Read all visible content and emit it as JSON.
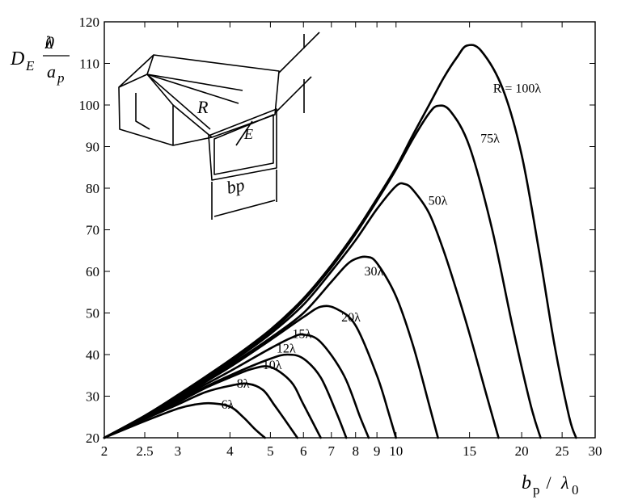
{
  "chart_data": {
    "type": "line",
    "xscale": "log",
    "xlim": [
      2,
      30
    ],
    "ylim": [
      20,
      120
    ],
    "grid": false,
    "xticks": [
      2,
      2.5,
      3,
      4,
      5,
      6,
      7,
      8,
      9,
      10,
      15,
      20,
      25,
      30
    ],
    "xtick_labels": [
      "2",
      "2.5",
      "3",
      "4",
      "5",
      "6",
      "7",
      "8",
      "9",
      "10",
      "15",
      "20",
      "25",
      "30"
    ],
    "yticks": [
      20,
      30,
      40,
      50,
      60,
      70,
      80,
      90,
      100,
      110,
      120
    ],
    "ytick_labels": [
      "20",
      "30",
      "40",
      "50",
      "60",
      "70",
      "80",
      "90",
      "100",
      "110",
      "120"
    ],
    "ylabel": {
      "main": "D",
      "sub": "E",
      "num": "λ",
      "num_sub": "0",
      "den": "a",
      "den_sub": "p"
    },
    "xlabel": {
      "var": "b",
      "sub": "p",
      "sep": " / ",
      "den": "λ",
      "den_sub": "0"
    },
    "series": [
      {
        "name": "6λ",
        "label": "6λ",
        "x": [
          2,
          2.5,
          3,
          3.3,
          3.6,
          4.0,
          4.3,
          4.6,
          4.85
        ],
        "y": [
          20,
          24.0,
          27.0,
          28.0,
          28.3,
          27.5,
          25.0,
          22.0,
          20
        ]
      },
      {
        "name": "8λ",
        "label": "8λ",
        "x": [
          2,
          2.5,
          3,
          3.5,
          4.0,
          4.4,
          4.8,
          5.1,
          5.4,
          5.8
        ],
        "y": [
          20,
          24.5,
          28.0,
          31.0,
          32.5,
          33.0,
          31.5,
          28.0,
          24.5,
          20
        ]
      },
      {
        "name": "10λ",
        "label": "10λ",
        "x": [
          2,
          2.5,
          3,
          3.5,
          4.0,
          4.5,
          5.0,
          5.6,
          6.0,
          6.6
        ],
        "y": [
          20,
          24.6,
          28.5,
          32.0,
          34.5,
          36.5,
          37.0,
          33.5,
          28.0,
          20
        ]
      },
      {
        "name": "12λ",
        "label": "12λ",
        "x": [
          2,
          2.5,
          3,
          4.0,
          5.0,
          5.5,
          6.0,
          6.6,
          7.2,
          7.6
        ],
        "y": [
          20,
          24.8,
          29.0,
          35.0,
          39.0,
          40.0,
          39.0,
          34.5,
          26.0,
          20
        ]
      },
      {
        "name": "15λ",
        "label": "15λ",
        "x": [
          2,
          2.5,
          3,
          4.0,
          5.0,
          5.6,
          6.0,
          6.6,
          7.5,
          8.2,
          8.6
        ],
        "y": [
          20,
          24.9,
          29.3,
          36.0,
          41.5,
          44.0,
          44.8,
          43.0,
          35.0,
          25.0,
          20
        ]
      },
      {
        "name": "20λ",
        "label": "20λ",
        "x": [
          2,
          2.5,
          3,
          4.0,
          5.0,
          6.0,
          6.6,
          7.2,
          8.0,
          9.0,
          9.6,
          10.0
        ],
        "y": [
          20,
          25.0,
          29.5,
          37.0,
          43.5,
          49.0,
          51.5,
          51.0,
          47.0,
          35.0,
          26.0,
          20
        ]
      },
      {
        "name": "30λ",
        "label": "30λ",
        "x": [
          2,
          2.5,
          3,
          4.0,
          5.0,
          6.0,
          7.0,
          7.6,
          8.0,
          8.5,
          9.0,
          10.0,
          11.0,
          12.0,
          12.6
        ],
        "y": [
          20,
          25.1,
          29.8,
          37.5,
          44.0,
          50.0,
          57.5,
          61.5,
          63.0,
          63.5,
          62.0,
          54.0,
          42.0,
          28.0,
          20
        ]
      },
      {
        "name": "50λ",
        "label": "50λ",
        "x": [
          2,
          2.5,
          3,
          4.0,
          5.0,
          6.0,
          7.0,
          8.0,
          9.0,
          10.0,
          10.5,
          11.0,
          12.0,
          13.0,
          14.0,
          15.0,
          16.5,
          17.6
        ],
        "y": [
          20,
          25.2,
          30.0,
          38.0,
          45.0,
          52.0,
          60.0,
          67.5,
          75.0,
          80.5,
          81.0,
          79.5,
          74.0,
          65.0,
          55.0,
          45.0,
          30.0,
          20
        ]
      },
      {
        "name": "75λ",
        "label": "75λ",
        "x": [
          2,
          2.5,
          3,
          4.0,
          5.0,
          6.0,
          7.0,
          8.0,
          9.0,
          10.0,
          11.0,
          12.0,
          12.6,
          13.5,
          15.0,
          17.0,
          19.0,
          21.0,
          22.2
        ],
        "y": [
          20,
          25.3,
          30.2,
          38.5,
          45.5,
          53.0,
          61.0,
          69.0,
          77.0,
          84.5,
          92.0,
          98.0,
          99.8,
          98.5,
          90.0,
          70.0,
          47.0,
          28.0,
          20
        ]
      },
      {
        "name": "R = 100λ",
        "label": "R = 100λ",
        "x": [
          2,
          2.5,
          3,
          4.0,
          5.0,
          6.0,
          7.0,
          8.0,
          9.0,
          10.0,
          11.0,
          12.0,
          13.0,
          14.0,
          14.8,
          16.0,
          18.0,
          20.0,
          22.0,
          24.0,
          26.0,
          27.0
        ],
        "y": [
          20,
          25.3,
          30.3,
          38.7,
          46.0,
          53.5,
          61.5,
          69.5,
          77.5,
          85.0,
          93.0,
          100.0,
          106.5,
          111.5,
          114.3,
          113.0,
          104.0,
          88.0,
          65.0,
          42.0,
          25.0,
          20
        ]
      }
    ],
    "label_positions": [
      {
        "text": "R = 100λ",
        "x": 19.5,
        "y": 103
      },
      {
        "text": "75λ",
        "x": 16.8,
        "y": 91
      },
      {
        "text": "50λ",
        "x": 12.6,
        "y": 76
      },
      {
        "text": "30λ",
        "x": 8.85,
        "y": 59
      },
      {
        "text": "20λ",
        "x": 7.8,
        "y": 48
      },
      {
        "text": "15λ",
        "x": 5.95,
        "y": 44
      },
      {
        "text": "12λ",
        "x": 5.45,
        "y": 40.5
      },
      {
        "text": "10λ",
        "x": 5.05,
        "y": 36.5
      },
      {
        "text": "8λ",
        "x": 4.3,
        "y": 32
      },
      {
        "text": "6λ",
        "x": 3.95,
        "y": 27
      }
    ]
  },
  "inset": {
    "icon": "horn-antenna-sketch",
    "labels": {
      "R": "R",
      "E": "E",
      "bp": "bp"
    }
  }
}
